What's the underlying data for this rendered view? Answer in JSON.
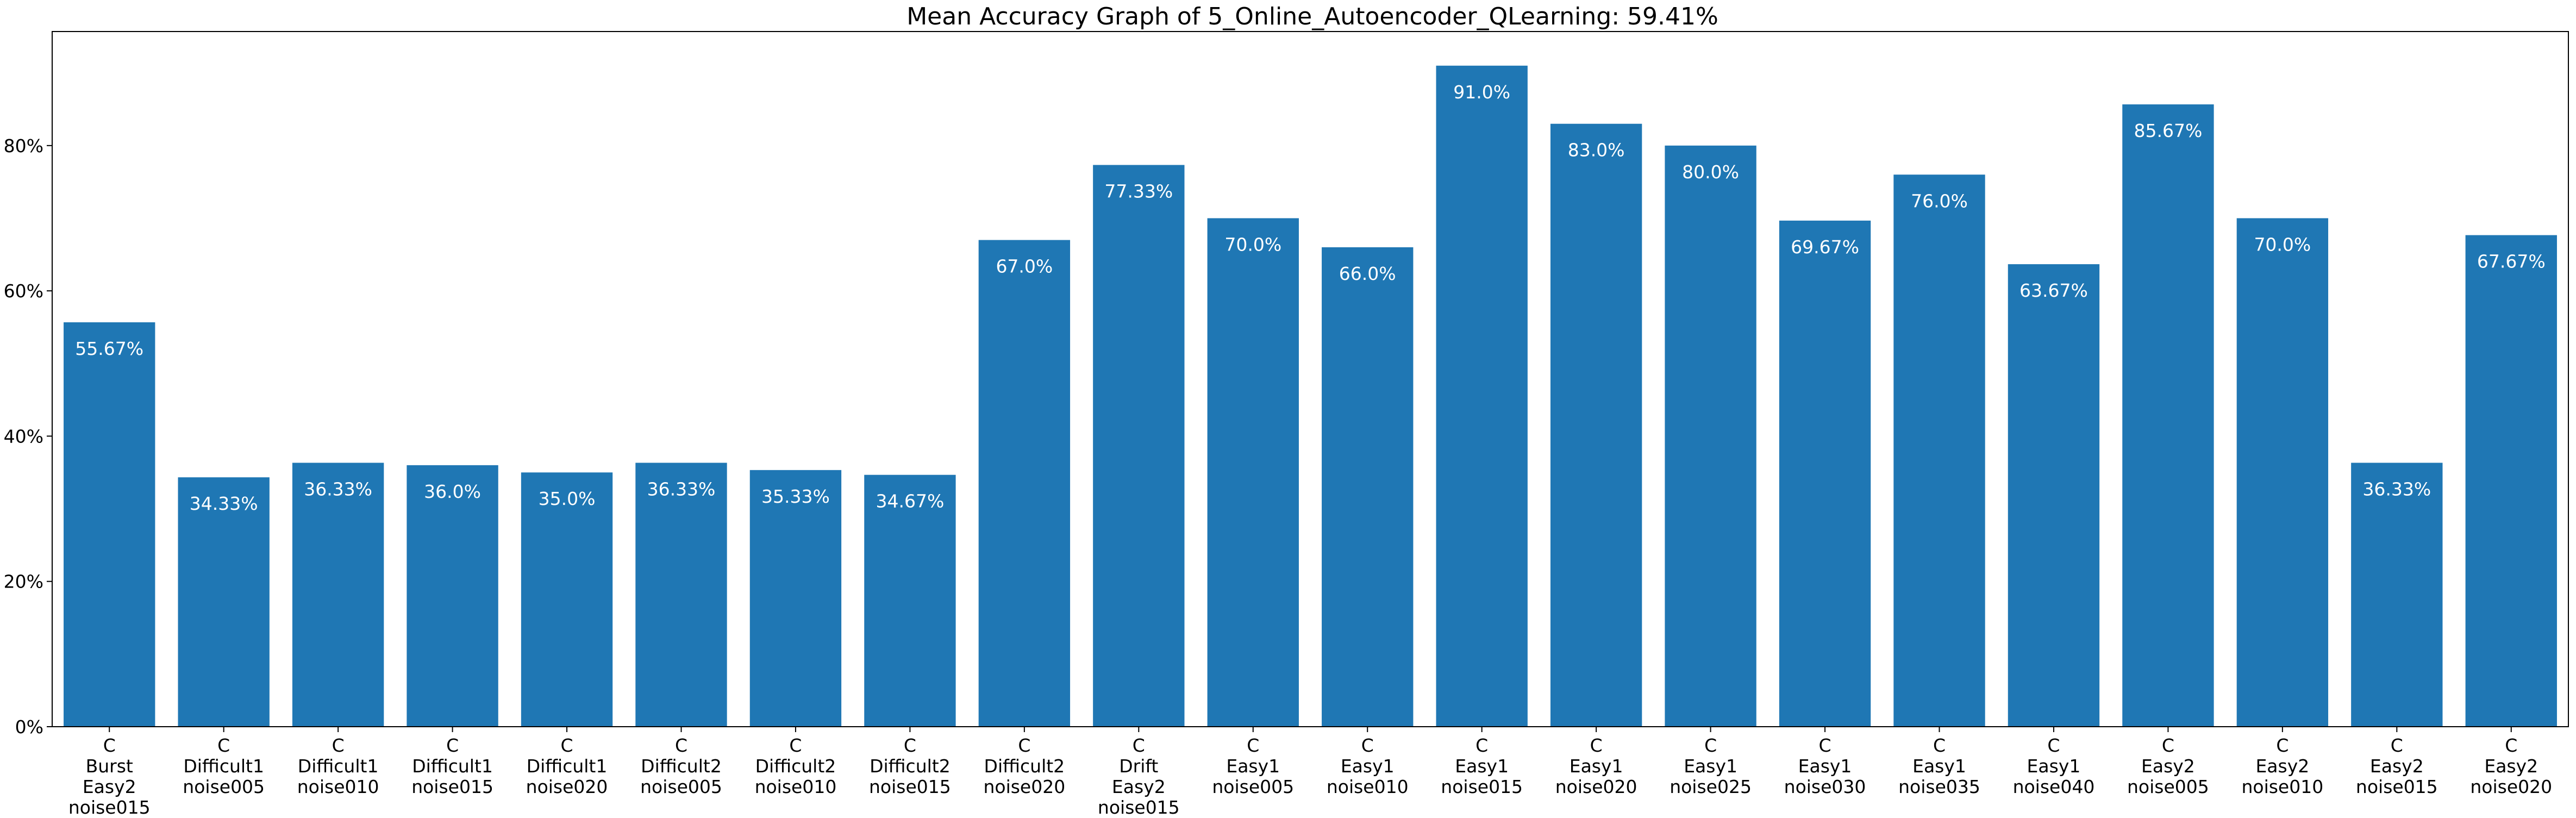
{
  "chart_data": {
    "type": "bar",
    "title": "Mean Accuracy Graph of 5_Online_Autoencoder_QLearning: 59.41%",
    "xlabel": "",
    "ylabel": "",
    "ylim": [
      0,
      95.7
    ],
    "yticks": [
      0,
      20,
      40,
      60,
      80
    ],
    "ytick_format": "{v}%",
    "bar_color": "#1f77b4",
    "label_color": "#ffffff",
    "grid": false,
    "categories": [
      [
        "C",
        "Burst",
        "Easy2",
        "noise015"
      ],
      [
        "C",
        "Difficult1",
        "noise005"
      ],
      [
        "C",
        "Difficult1",
        "noise010"
      ],
      [
        "C",
        "Difficult1",
        "noise015"
      ],
      [
        "C",
        "Difficult1",
        "noise020"
      ],
      [
        "C",
        "Difficult2",
        "noise005"
      ],
      [
        "C",
        "Difficult2",
        "noise010"
      ],
      [
        "C",
        "Difficult2",
        "noise015"
      ],
      [
        "C",
        "Difficult2",
        "noise020"
      ],
      [
        "C",
        "Drift",
        "Easy2",
        "noise015"
      ],
      [
        "C",
        "Easy1",
        "noise005"
      ],
      [
        "C",
        "Easy1",
        "noise010"
      ],
      [
        "C",
        "Easy1",
        "noise015"
      ],
      [
        "C",
        "Easy1",
        "noise020"
      ],
      [
        "C",
        "Easy1",
        "noise025"
      ],
      [
        "C",
        "Easy1",
        "noise030"
      ],
      [
        "C",
        "Easy1",
        "noise035"
      ],
      [
        "C",
        "Easy1",
        "noise040"
      ],
      [
        "C",
        "Easy2",
        "noise005"
      ],
      [
        "C",
        "Easy2",
        "noise010"
      ],
      [
        "C",
        "Easy2",
        "noise015"
      ],
      [
        "C",
        "Easy2",
        "noise020"
      ]
    ],
    "values": [
      55.67,
      34.33,
      36.33,
      36.0,
      35.0,
      36.33,
      35.33,
      34.67,
      67.0,
      77.33,
      70.0,
      66.0,
      91.0,
      83.0,
      80.0,
      69.67,
      76.0,
      63.67,
      85.67,
      70.0,
      36.33,
      67.67
    ],
    "data_labels": [
      "55.67%",
      "34.33%",
      "36.33%",
      "36.0%",
      "35.0%",
      "36.33%",
      "35.33%",
      "34.67%",
      "67.0%",
      "77.33%",
      "70.0%",
      "66.0%",
      "91.0%",
      "83.0%",
      "80.0%",
      "69.67%",
      "76.0%",
      "63.67%",
      "85.67%",
      "70.0%",
      "36.33%",
      "67.67%"
    ]
  }
}
